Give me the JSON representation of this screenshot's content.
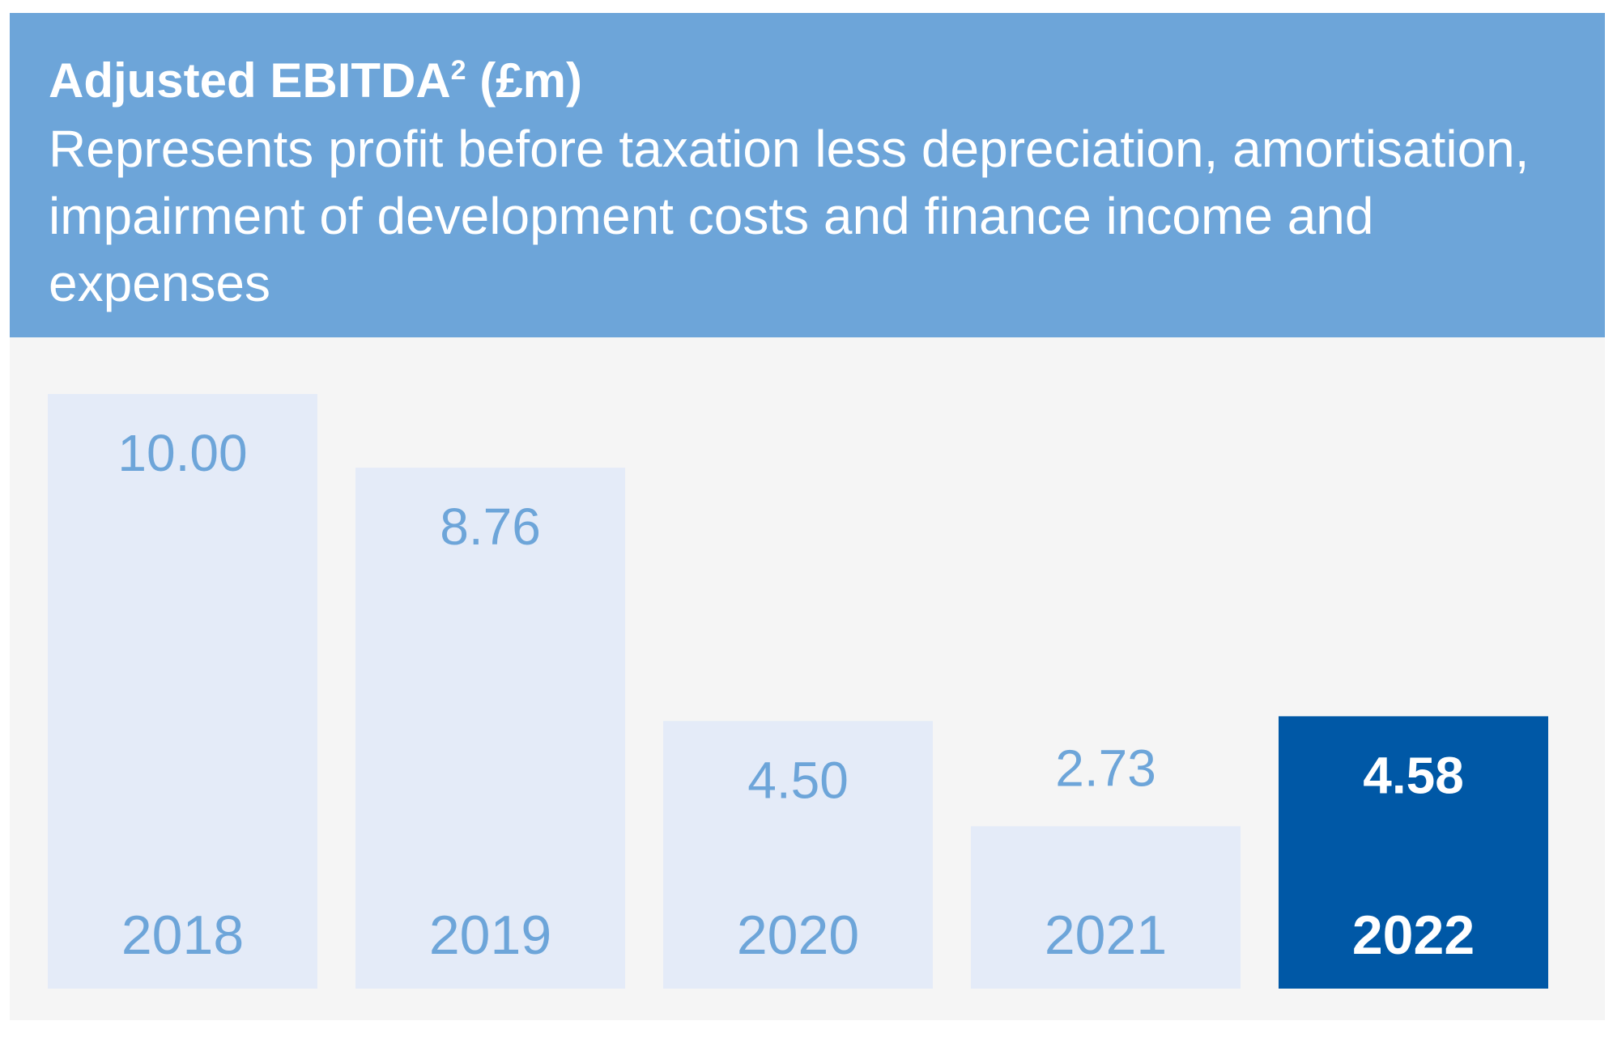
{
  "header": {
    "title": "Adjusted EBITDA",
    "title_superscript": "2",
    "title_unit": " (£m)",
    "subtitle": "Represents profit before taxation less depreciation, amortisation, impairment of development costs and finance income and expenses"
  },
  "colors": {
    "header_background": "#6da5d9",
    "card_background": "#f5f5f5",
    "bar_default": "#e4ebf8",
    "bar_highlight": "#0058a6",
    "label_default": "#6da5d9",
    "label_highlight": "#ffffff"
  },
  "chart_data": {
    "type": "bar",
    "title": "Adjusted EBITDA² (£m)",
    "subtitle": "Represents profit before taxation less depreciation, amortisation, impairment of development costs and finance income and expenses",
    "categories": [
      "2018",
      "2019",
      "2020",
      "2021",
      "2022"
    ],
    "values": [
      10.0,
      8.76,
      4.5,
      2.73,
      4.58
    ],
    "value_labels": [
      "10.00",
      "8.76",
      "4.50",
      "2.73",
      "4.58"
    ],
    "highlight_category": "2022",
    "ylim": [
      0,
      10
    ],
    "grid": false,
    "legend": "none"
  }
}
